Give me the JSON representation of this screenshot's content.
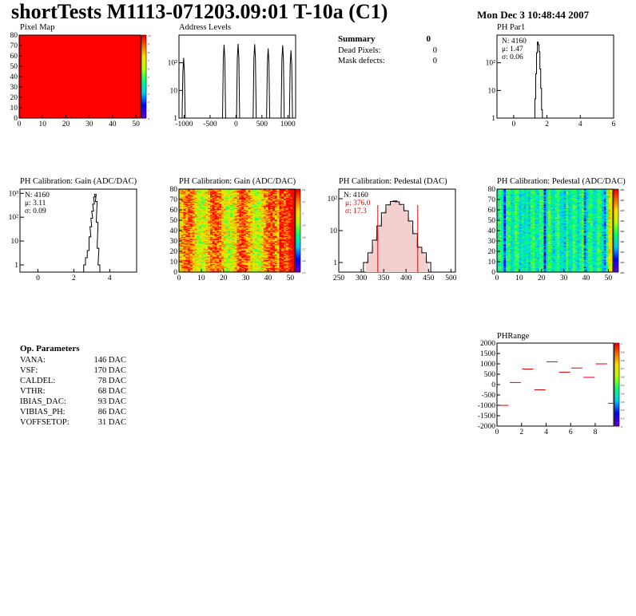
{
  "header": {
    "title": "shortTests M1113-071203.09:01 T-10a (C1)",
    "date": "Mon Dec  3 10:48:44 2007"
  },
  "summary": {
    "title": "Summary",
    "title_value": "0",
    "rows": [
      {
        "label": "Dead Pixels:",
        "value": "0"
      },
      {
        "label": "Mask defects:",
        "value": "0"
      }
    ]
  },
  "op_params": {
    "title": "Op. Parameters",
    "rows": [
      {
        "label": "VANA:",
        "value": "146 DAC"
      },
      {
        "label": "VSF:",
        "value": "170 DAC"
      },
      {
        "label": "CALDEL:",
        "value": "78 DAC"
      },
      {
        "label": "VTHR:",
        "value": "68 DAC"
      },
      {
        "label": "IBIAS_DAC:",
        "value": "93 DAC"
      },
      {
        "label": "VIBIAS_PH:",
        "value": "86 DAC"
      },
      {
        "label": "VOFFSETOP:",
        "value": "31 DAC"
      }
    ]
  },
  "chart_data": [
    {
      "id": "pixel-map",
      "type": "heatmap",
      "title": "Pixel Map",
      "xlim": [
        0,
        52
      ],
      "ylim": [
        0,
        80
      ],
      "xticks": [
        "0",
        "10",
        "20",
        "30",
        "40",
        "50"
      ],
      "yticks": [
        "0",
        "10",
        "20",
        "30",
        "40",
        "50",
        "60",
        "70",
        "80"
      ],
      "fill_value": 10,
      "fill_color": "#ff0000",
      "z_range": [
        0,
        10
      ]
    },
    {
      "id": "address-levels",
      "type": "bar",
      "title": "Address Levels",
      "xlim": [
        -1100,
        1150
      ],
      "log_y": true,
      "ylim": [
        1,
        1000
      ],
      "xticks": [
        "-1000",
        "-500",
        "0",
        "500",
        "1000"
      ],
      "yticks": [
        "1",
        "10",
        "10²"
      ],
      "peaks": [
        {
          "center": -1010,
          "height": 150
        },
        {
          "center": -230,
          "height": 450
        },
        {
          "center": 40,
          "height": 480
        },
        {
          "center": 360,
          "height": 470
        },
        {
          "center": 620,
          "height": 330
        },
        {
          "center": 900,
          "height": 430
        },
        {
          "center": 1060,
          "height": 280
        }
      ]
    },
    {
      "id": "ph-par1",
      "type": "line",
      "title": "PH Par1",
      "xlim": [
        -1,
        6
      ],
      "log_y": true,
      "ylim": [
        1,
        1000
      ],
      "xticks": [
        "0",
        "2",
        "4",
        "6"
      ],
      "yticks": [
        "1",
        "10",
        "10²"
      ],
      "stats": [
        "N: 4160",
        "μ: 1.47",
        "σ: 0.06"
      ],
      "x": [
        1.25,
        1.3,
        1.35,
        1.4,
        1.45,
        1.5,
        1.55,
        1.6,
        1.65,
        1.7,
        1.75
      ],
      "y": [
        1,
        5,
        40,
        230,
        560,
        450,
        250,
        60,
        12,
        2,
        1
      ]
    },
    {
      "id": "gain-hist",
      "type": "line",
      "title": "PH Calibration: Gain (ADC/DAC)",
      "xlim": [
        -1,
        5.5
      ],
      "log_y": true,
      "ylim": [
        0.5,
        1500
      ],
      "xticks": [
        "0",
        "2",
        "4"
      ],
      "yticks": [
        "1",
        "10",
        "10²",
        "10³"
      ],
      "stats": [
        "N: 4160",
        "μ: 3.11",
        "σ: 0.09"
      ],
      "x": [
        2.6,
        2.7,
        2.8,
        2.9,
        2.95,
        3.0,
        3.05,
        3.1,
        3.15,
        3.2,
        3.25,
        3.3,
        3.35,
        3.4
      ],
      "y": [
        1,
        2,
        4,
        15,
        40,
        90,
        180,
        350,
        700,
        900,
        450,
        60,
        5,
        1
      ]
    },
    {
      "id": "gain-map",
      "type": "heatmap",
      "title": "PH Calibration: Gain (ADC/DAC)",
      "xlim": [
        0,
        52
      ],
      "ylim": [
        0,
        80
      ],
      "xticks": [
        "0",
        "10",
        "20",
        "30",
        "40",
        "50"
      ],
      "yticks": [
        "0",
        "10",
        "20",
        "30",
        "40",
        "50",
        "60",
        "70",
        "80"
      ],
      "z_range": [
        2.5,
        3.2
      ],
      "zticks": [
        "2.5",
        "2.6",
        "2.7",
        "2.8",
        "2.9",
        "3",
        "3.1",
        "3.2"
      ]
    },
    {
      "id": "pedestal-hist",
      "type": "line",
      "title": "PH Calibration: Pedestal (DAC)",
      "xlim": [
        250,
        510
      ],
      "log_y": true,
      "ylim": [
        0.5,
        200
      ],
      "xticks": [
        "250",
        "300",
        "350",
        "400",
        "450",
        "500"
      ],
      "yticks": [
        "1",
        "10",
        "10²"
      ],
      "stats": [
        "N: 4160"
      ],
      "fit_stats": [
        "μ: 376.0",
        "σ: 17.3"
      ],
      "fit_lines": [
        337,
        426
      ],
      "x": [
        310,
        320,
        330,
        340,
        350,
        360,
        370,
        375,
        380,
        390,
        400,
        410,
        420,
        430,
        440,
        450
      ],
      "y": [
        1,
        2,
        5,
        14,
        36,
        64,
        82,
        85,
        80,
        66,
        42,
        20,
        8,
        3,
        2,
        1
      ]
    },
    {
      "id": "pedestal-map",
      "type": "heatmap",
      "title": "PH Calibration: Pedestal (ADC/DAC)",
      "xlim": [
        0,
        52
      ],
      "ylim": [
        0,
        80
      ],
      "xticks": [
        "0",
        "10",
        "20",
        "30",
        "40",
        "50"
      ],
      "yticks": [
        "0",
        "10",
        "20",
        "30",
        "40",
        "50",
        "60",
        "70",
        "80"
      ],
      "z_range": [
        300,
        460
      ],
      "zticks": [
        "300",
        "320",
        "340",
        "360",
        "380",
        "400",
        "420",
        "440",
        "460"
      ]
    },
    {
      "id": "ph-range",
      "type": "scatter",
      "title": "PHRange",
      "xlim": [
        0,
        9.5
      ],
      "ylim": [
        -2000,
        2000
      ],
      "xticks": [
        "0",
        "2",
        "4",
        "6",
        "8"
      ],
      "yticks": [
        "-2000",
        "-1500",
        "-1000",
        "-500",
        "0",
        "500",
        "1000",
        "1500",
        "2000"
      ],
      "zticks": [
        "0",
        "0.1",
        "0.2",
        "0.3",
        "0.4",
        "0.5",
        "0.6",
        "0.7",
        "0.8",
        "0.9",
        "1"
      ],
      "x": [
        0.5,
        1.5,
        2.5,
        3.5,
        4.5,
        5.5,
        6.5,
        7.5,
        8.5,
        9.5
      ],
      "y": [
        -1000,
        100,
        750,
        -250,
        1100,
        600,
        800,
        350,
        1000,
        -900
      ]
    }
  ]
}
